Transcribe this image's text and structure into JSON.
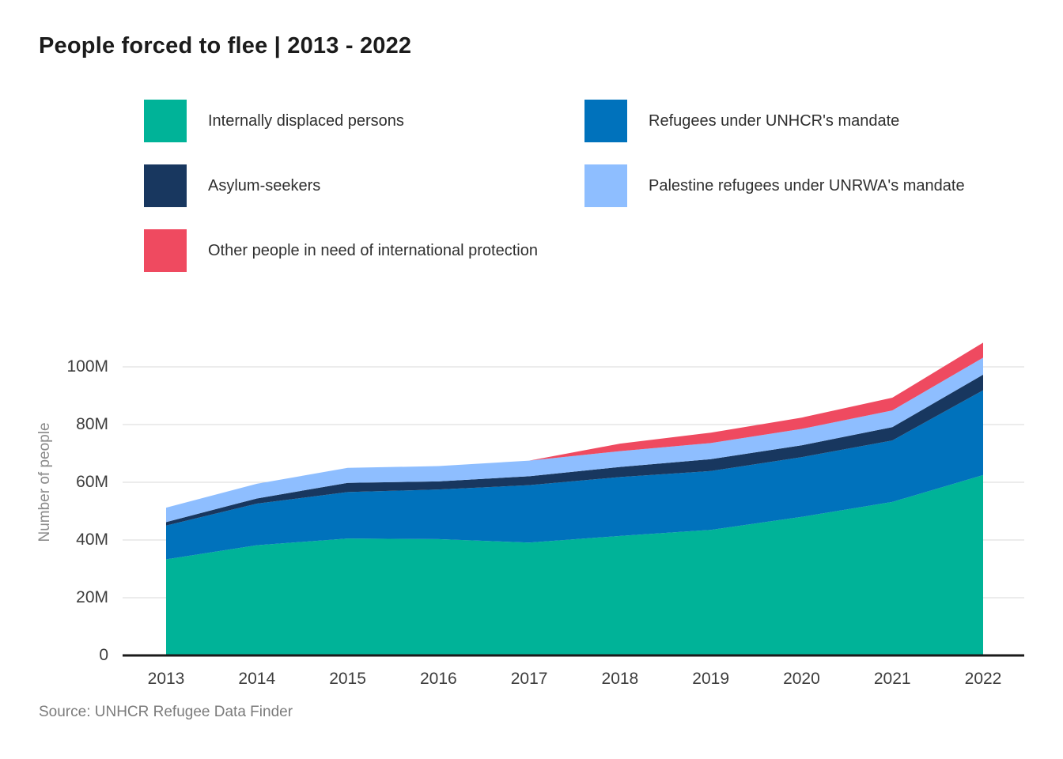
{
  "source": "Source: UNHCR Refugee Data Finder",
  "colors": {
    "axis_line": "#1a1a1a",
    "gridline": "#d9d9d9",
    "tick_text": "#3d3d3d",
    "muted_text": "#8b8b8b",
    "title_text": "#1b1b1b"
  },
  "chart_data": {
    "type": "area",
    "stacked": true,
    "title": "People forced to flee | 2013 - 2022",
    "ylabel": "Number of people",
    "xlabel": "",
    "grid": true,
    "legend_position": "top",
    "unit": "millions of people",
    "x": [
      2013,
      2014,
      2015,
      2016,
      2017,
      2018,
      2019,
      2020,
      2021,
      2022
    ],
    "x_labels": [
      "2013",
      "2014",
      "2015",
      "2016",
      "2017",
      "2018",
      "2019",
      "2020",
      "2021",
      "2022"
    ],
    "yticks": {
      "values": [
        0,
        20,
        40,
        60,
        80,
        100
      ],
      "labels": [
        "0",
        "20M",
        "40M",
        "60M",
        "80M",
        "100M"
      ]
    },
    "ylim": [
      0,
      109
    ],
    "series": [
      {
        "name": "Internally displaced persons",
        "color": "#00B398",
        "values": [
          33.3,
          38.2,
          40.5,
          40.3,
          39.1,
          41.4,
          43.5,
          48.0,
          53.2,
          62.5
        ]
      },
      {
        "name": "Refugees under UNHCR's mandate",
        "color": "#0072BC",
        "values": [
          11.7,
          14.4,
          16.1,
          17.2,
          19.9,
          20.4,
          20.4,
          20.7,
          21.3,
          29.4
        ]
      },
      {
        "name": "Asylum-seekers",
        "color": "#18375F",
        "values": [
          1.2,
          1.8,
          3.2,
          2.8,
          3.1,
          3.5,
          4.1,
          4.1,
          4.6,
          5.4
        ]
      },
      {
        "name": "Palestine refugees under UNRWA's mandate",
        "color": "#8EBEFF",
        "values": [
          5.0,
          5.1,
          5.2,
          5.3,
          5.4,
          5.5,
          5.6,
          5.7,
          5.8,
          5.9
        ]
      },
      {
        "name": "Other people in need of international protection",
        "color": "#EF4A60",
        "values": [
          0,
          0,
          0,
          0,
          0,
          2.6,
          3.6,
          3.9,
          4.4,
          5.2
        ]
      }
    ]
  }
}
